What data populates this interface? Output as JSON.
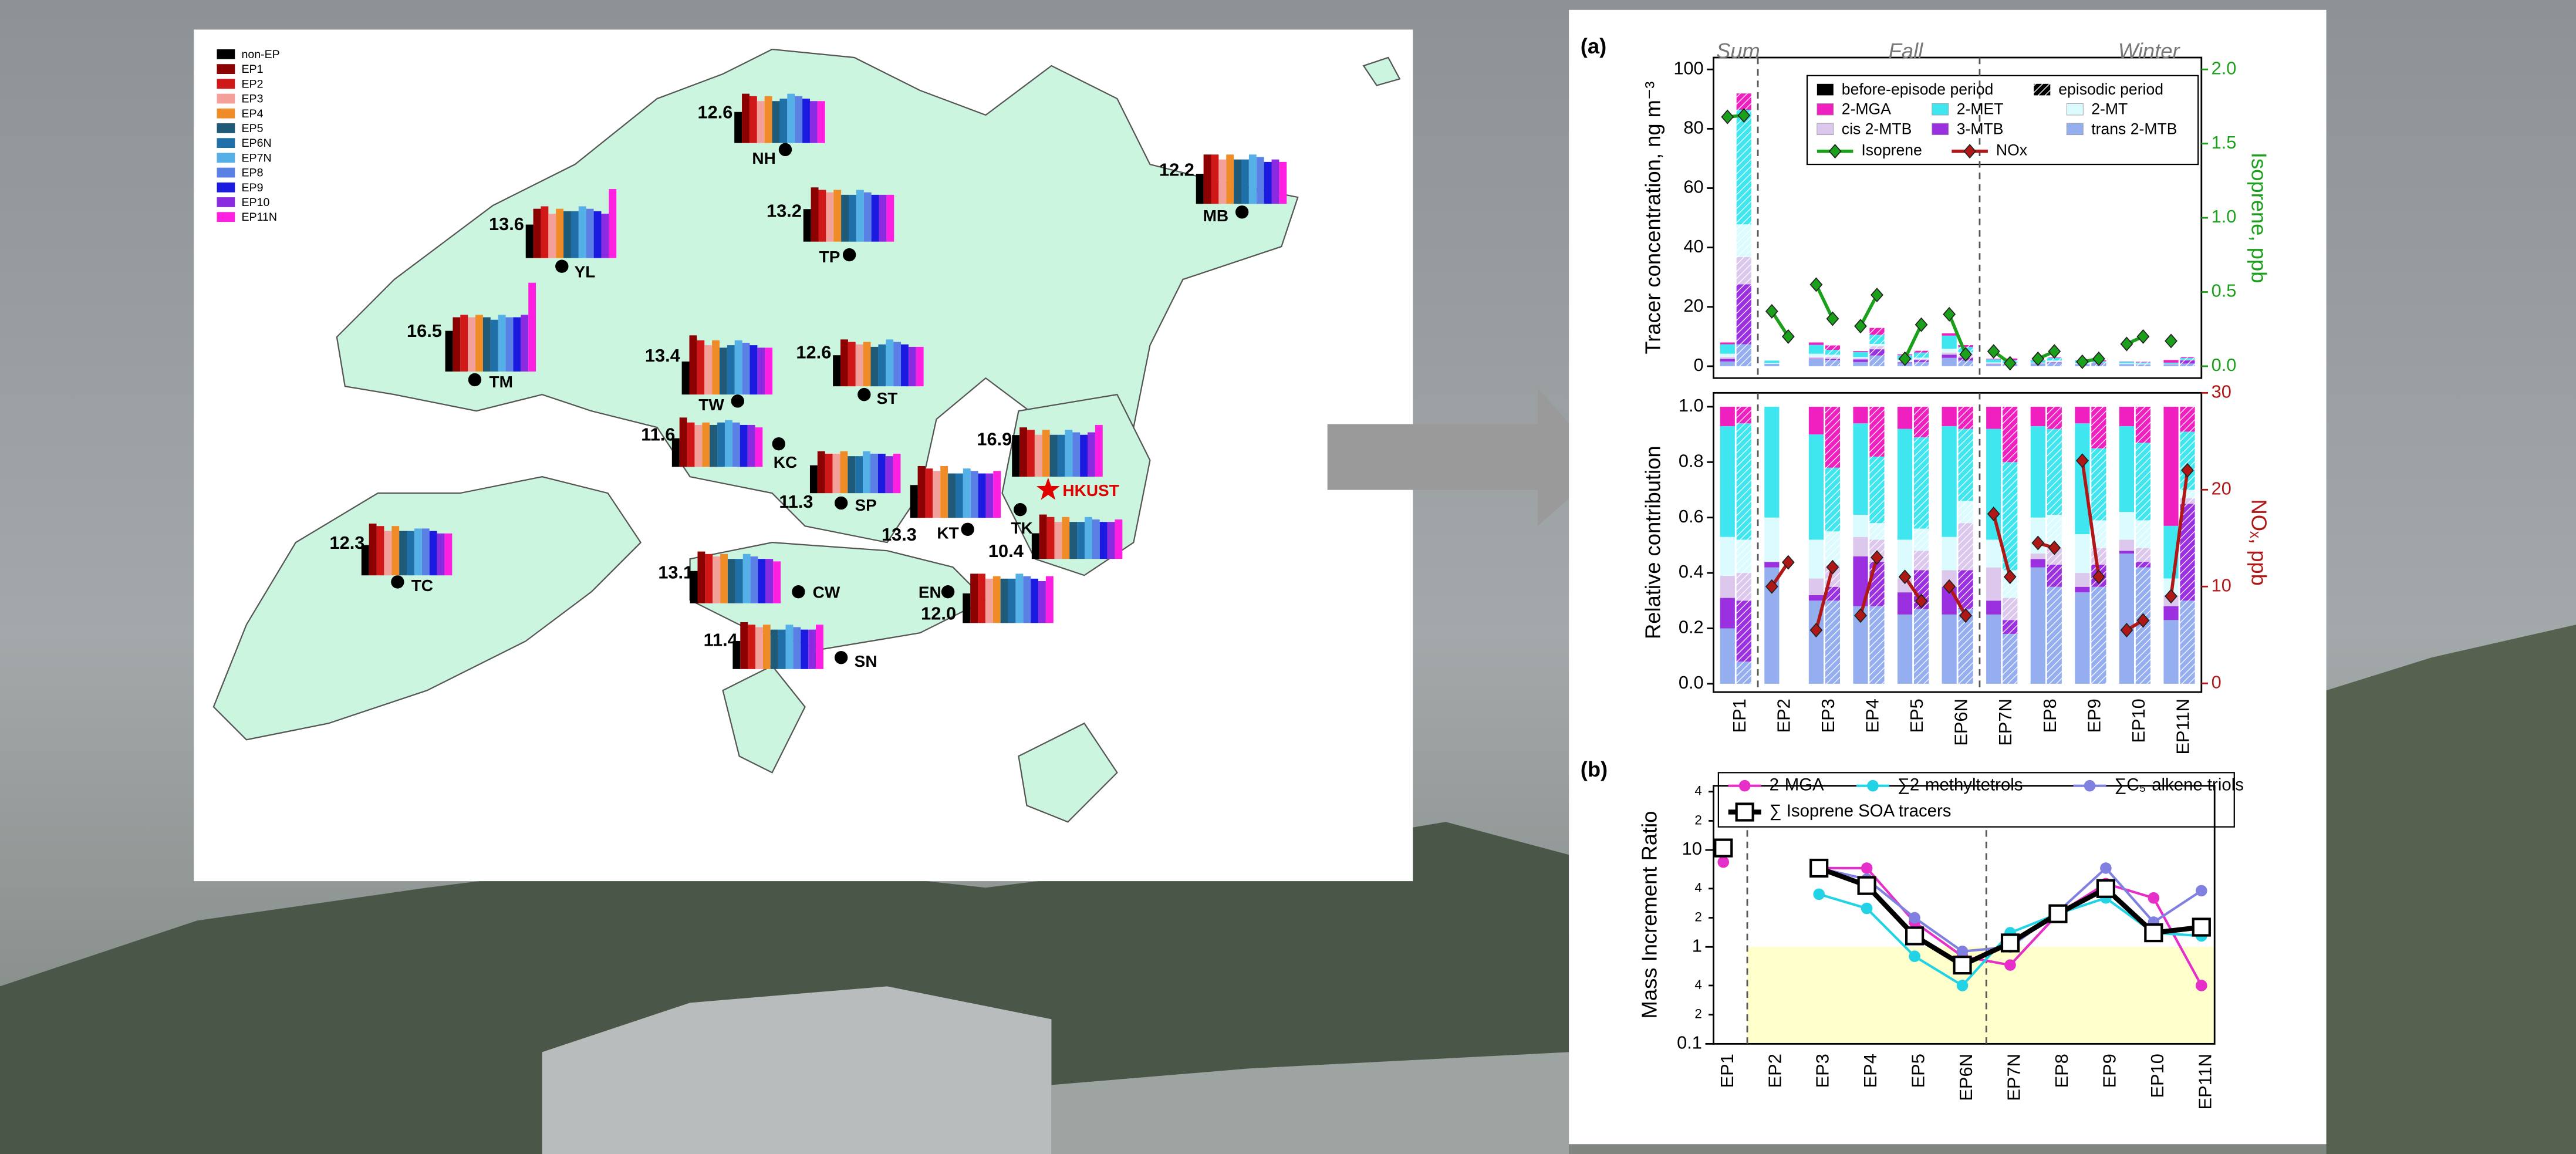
{
  "map": {
    "legend": [
      {
        "name": "non-EP",
        "color": "#000000"
      },
      {
        "name": "EP1",
        "color": "#8b0000"
      },
      {
        "name": "EP2",
        "color": "#d01818"
      },
      {
        "name": "EP3",
        "color": "#f4a09a"
      },
      {
        "name": "EP4",
        "color": "#f08c28"
      },
      {
        "name": "EP5",
        "color": "#1f5a78"
      },
      {
        "name": "EP6N",
        "color": "#1f6fa8"
      },
      {
        "name": "EP7N",
        "color": "#55b0e8"
      },
      {
        "name": "EP8",
        "color": "#5a80e6"
      },
      {
        "name": "EP9",
        "color": "#1a1ae0"
      },
      {
        "name": "EP10",
        "color": "#8a2be2"
      },
      {
        "name": "EP11N",
        "color": "#ff1fe0"
      }
    ],
    "stations": [
      {
        "name": "NH",
        "label": "12.6",
        "bars": [
          12.6,
          20,
          19,
          17,
          19,
          17,
          18,
          20,
          19,
          18,
          17,
          17
        ]
      },
      {
        "name": "YL",
        "label": "13.6",
        "bars": [
          13.6,
          20,
          21,
          18,
          20,
          19,
          19,
          21,
          20,
          19,
          18,
          28
        ]
      },
      {
        "name": "TM",
        "label": "16.5",
        "bars": [
          16.5,
          22,
          23,
          22,
          23,
          22,
          21,
          23,
          22,
          22,
          23,
          36
        ]
      },
      {
        "name": "TP",
        "label": "13.2",
        "bars": [
          13.2,
          22,
          21,
          20,
          21,
          19,
          19,
          21,
          20,
          19,
          19,
          19
        ]
      },
      {
        "name": "MB",
        "label": "12.2",
        "bars": [
          12.2,
          20,
          20,
          18,
          20,
          18,
          18,
          20,
          19,
          17,
          18,
          17
        ]
      },
      {
        "name": "TW",
        "label": "13.4",
        "bars": [
          13.4,
          24,
          22,
          20,
          22,
          19,
          20,
          22,
          21,
          20,
          19,
          19
        ]
      },
      {
        "name": "ST",
        "label": "12.6",
        "bars": [
          12.6,
          19,
          18,
          17,
          18,
          16,
          17,
          19,
          18,
          17,
          16,
          16
        ]
      },
      {
        "name": "KC",
        "label": "11.6",
        "bars": [
          11.6,
          20,
          18,
          17,
          18,
          17,
          18,
          19,
          18,
          17,
          17,
          16
        ]
      },
      {
        "name": "SP",
        "label": "11.3",
        "bars": [
          11.3,
          17,
          16,
          16,
          17,
          15,
          15,
          17,
          16,
          16,
          15,
          16
        ]
      },
      {
        "name": "KT",
        "label": "13.3",
        "bars": [
          13.3,
          21,
          20,
          19,
          21,
          18,
          18,
          20,
          19,
          18,
          18,
          19
        ]
      },
      {
        "name": "HKUST",
        "label": "16.9",
        "color": "#e00000",
        "marker": "star",
        "bars": [
          16.9,
          20,
          19,
          17,
          19,
          17,
          17,
          19,
          18,
          17,
          18,
          21
        ]
      },
      {
        "name": "TK",
        "label": "10.4",
        "bars": [
          10.4,
          18,
          17,
          15,
          17,
          15,
          15,
          17,
          16,
          15,
          15,
          16
        ]
      },
      {
        "name": "TC",
        "label": "12.3",
        "bars": [
          12.3,
          21,
          20,
          18,
          20,
          18,
          18,
          19,
          19,
          18,
          17,
          17
        ]
      },
      {
        "name": "CW",
        "label": "13.1",
        "bars": [
          13.1,
          21,
          20,
          19,
          20,
          18,
          18,
          20,
          19,
          18,
          18,
          17
        ]
      },
      {
        "name": "EN",
        "label": "12.0",
        "bars": [
          12.0,
          20,
          20,
          18,
          19,
          18,
          18,
          20,
          19,
          18,
          17,
          19
        ]
      },
      {
        "name": "SN",
        "label": "11.4",
        "bars": [
          11.4,
          19,
          18,
          17,
          18,
          16,
          16,
          18,
          17,
          16,
          16,
          18
        ]
      }
    ]
  },
  "chart_data": [
    {
      "type": "paired_stacked_bar",
      "panel_label": "(a)",
      "season_labels": [
        "Sum",
        "Fall",
        "Winter"
      ],
      "ylabel": "Tracer concentration, ng m⁻³",
      "y2label": "Isoprene, ppb",
      "ylim": [
        -4,
        104
      ],
      "yticks": [
        0,
        20,
        40,
        60,
        80,
        100
      ],
      "y2lim": [
        -0.08,
        2.08
      ],
      "y2ticks": [
        {
          "value": 0,
          "label": "0.0"
        },
        0.5,
        {
          "value": 1,
          "label": "1.0"
        },
        1.5,
        {
          "value": 2,
          "label": "2.0"
        }
      ],
      "period_labels": [
        "before-episode period",
        "episodic period"
      ],
      "series": [
        {
          "name": "trans 2-MTB",
          "color": "#94aef0",
          "before": [
            1.6,
            0.8,
            2.4,
            1.4,
            1,
            2.8,
            0.6,
            0.8,
            0.7,
            0.7,
            0.5
          ],
          "episodic": [
            7.4,
            null,
            2.1,
            3.6,
            1.4,
            1.9,
            0.5,
            1.1,
            0.7,
            0.6,
            0.9
          ]
        },
        {
          "name": "3-MTB",
          "color": "#9b30e0",
          "before": [
            0.9,
            0,
            0.2,
            0.9,
            0.3,
            1.1,
            0.1,
            0.1,
            0,
            0,
            0.1
          ],
          "episodic": [
            20.2,
            null,
            0.4,
            2.1,
            0.7,
            1,
            0.1,
            0.2,
            0.2,
            0,
            1.1
          ]
        },
        {
          "name": "cis 2-MTB",
          "color": "#dcc8ec",
          "before": [
            0.6,
            0,
            0.5,
            0.4,
            0.2,
            0.7,
            0.3,
            0,
            0.1,
            0.1,
            0.1
          ],
          "episodic": [
            9.2,
            null,
            0.6,
            1,
            0.4,
            1.2,
            0.2,
            0.2,
            0.1,
            0.1,
            0.1
          ]
        },
        {
          "name": "2-MT",
          "color": "#dcfbff",
          "before": [
            1.1,
            0.3,
            1.1,
            0.4,
            0.6,
            1.3,
            0.3,
            0.3,
            0.3,
            0.2,
            0.1
          ],
          "episodic": [
            11,
            null,
            0.8,
            0.8,
            0.4,
            0.6,
            0.3,
            0.4,
            0.2,
            0.2,
            0.1
          ]
        },
        {
          "name": "2-MET",
          "color": "#3fe6f0",
          "before": [
            3.2,
            0.8,
            3,
            1.7,
            1.6,
            4.4,
            1,
            0.7,
            0.8,
            0.5,
            0.4
          ],
          "episodic": [
            38.6,
            null,
            1.6,
            3.1,
            1.7,
            1.8,
            1,
            0.9,
            0.5,
            0.4,
            0.6
          ]
        },
        {
          "name": "2-MGA",
          "color": "#f020c0",
          "before": [
            0.6,
            0,
            0.8,
            0.3,
            0.3,
            0.8,
            0.2,
            0.1,
            0.1,
            0.1,
            0.9
          ],
          "episodic": [
            5.5,
            null,
            1.5,
            2.3,
            0.6,
            0.6,
            0.5,
            0.2,
            0.3,
            0.2,
            0.3
          ]
        }
      ],
      "lines": [
        {
          "name": "Isoprene",
          "color": "#1aa01a",
          "axis": "y2",
          "before": [
            1.68,
            0.37,
            0.55,
            0.27,
            0.05,
            0.35,
            0.1,
            0.05,
            0.03,
            0.15,
            0.17
          ],
          "episodic": [
            1.69,
            0.2,
            0.32,
            0.48,
            0.28,
            0.08,
            0.02,
            0.1,
            0.05,
            0.2,
            null
          ]
        }
      ]
    },
    {
      "type": "paired_stacked_bar",
      "ylabel": "Relative contribution",
      "y2label": "NOₓ, ppb",
      "categories": [
        "EP1",
        "EP2",
        "EP3",
        "EP4",
        "EP5",
        "EP6N",
        "EP7N",
        "EP8",
        "EP9",
        "EP10",
        "EP11N"
      ],
      "ylim": [
        -0.03,
        1.05
      ],
      "yticks": [
        {
          "value": 0,
          "label": "0.0"
        },
        0.2,
        0.4,
        0.6,
        0.8,
        {
          "value": 1,
          "label": "1.0"
        }
      ],
      "y2lim": [
        -0.9,
        30
      ],
      "y2ticks": [
        0,
        10,
        20,
        30
      ],
      "series": [
        {
          "color": "#94aef0",
          "before": [
            0.2,
            0.42,
            0.3,
            0.28,
            0.25,
            0.25,
            0.25,
            0.42,
            0.33,
            0.47,
            0.23
          ],
          "episodic": [
            0.08,
            null,
            0.3,
            0.28,
            0.27,
            0.27,
            0.18,
            0.35,
            0.35,
            0.42,
            0.3
          ]
        },
        {
          "color": "#9b30e0",
          "before": [
            0.11,
            0.02,
            0.02,
            0.18,
            0.08,
            0.1,
            0.05,
            0.03,
            0.02,
            0.01,
            0.05
          ],
          "episodic": [
            0.22,
            null,
            0.05,
            0.16,
            0.14,
            0.14,
            0.05,
            0.08,
            0.08,
            0.02,
            0.35
          ]
        },
        {
          "color": "#dcc8ec",
          "before": [
            0.08,
            0,
            0.06,
            0.07,
            0.05,
            0.06,
            0.12,
            0.02,
            0.05,
            0.04,
            0.04
          ],
          "episodic": [
            0.1,
            null,
            0.08,
            0.08,
            0.07,
            0.17,
            0.08,
            0.06,
            0.06,
            0.05,
            0.02
          ]
        },
        {
          "color": "#dcfbff",
          "before": [
            0.14,
            0.16,
            0.14,
            0.08,
            0.14,
            0.12,
            0.1,
            0.13,
            0.14,
            0.1,
            0.06
          ],
          "episodic": [
            0.12,
            null,
            0.12,
            0.06,
            0.08,
            0.08,
            0.1,
            0.12,
            0.1,
            0.1,
            0.03
          ]
        },
        {
          "color": "#3fe6f0",
          "before": [
            0.4,
            0.4,
            0.38,
            0.33,
            0.4,
            0.4,
            0.4,
            0.33,
            0.4,
            0.31,
            0.19
          ],
          "episodic": [
            0.42,
            null,
            0.23,
            0.24,
            0.33,
            0.26,
            0.39,
            0.31,
            0.26,
            0.28,
            0.21
          ]
        },
        {
          "color": "#f020c0",
          "before": [
            0.07,
            0,
            0.1,
            0.06,
            0.08,
            0.07,
            0.08,
            0.07,
            0.06,
            0.07,
            0.43
          ],
          "episodic": [
            0.06,
            null,
            0.22,
            0.18,
            0.11,
            0.08,
            0.2,
            0.08,
            0.15,
            0.13,
            0.09
          ]
        }
      ],
      "lines": [
        {
          "name": "NOx",
          "color": "#b01818",
          "axis": "y2",
          "before": [
            null,
            10,
            5.5,
            7,
            11,
            10,
            17.5,
            14.5,
            23,
            5.5,
            9
          ],
          "episodic": [
            null,
            12.5,
            12,
            13,
            8.5,
            7,
            11,
            14,
            11,
            6.5,
            22
          ]
        }
      ]
    },
    {
      "type": "line",
      "panel_label": "(b)",
      "ylabel": "Mass Increment Ratio",
      "log_y": true,
      "categories": [
        "EP1",
        "EP2",
        "EP3",
        "EP4",
        "EP5",
        "EP6N",
        "EP7N",
        "EP8",
        "EP9",
        "EP10",
        "EP11N"
      ],
      "ylim": [
        0.1,
        46
      ],
      "yticks": [
        0.1,
        {
          "value": 0.2,
          "label": "2"
        },
        {
          "value": 0.4,
          "label": "4"
        },
        1,
        2,
        4,
        10,
        {
          "value": 20,
          "label": "2"
        },
        {
          "value": 40,
          "label": "4"
        }
      ],
      "shaded_band": {
        "range": [
          0.1,
          1
        ],
        "color": "#ffffcc"
      },
      "series": [
        {
          "name": "2-MGA",
          "color": "#e62ec8",
          "marker": "circle",
          "values": [
            7.5,
            null,
            6.5,
            6.5,
            1.8,
            0.8,
            0.65,
            2.2,
            4.5,
            3.2,
            0.4
          ]
        },
        {
          "name": "∑2-methyltetrols",
          "color": "#22d3e6",
          "marker": "circle",
          "values": [
            null,
            null,
            3.5,
            2.5,
            0.8,
            0.4,
            1.4,
            2.2,
            3.2,
            1.4,
            1.3
          ]
        },
        {
          "name": "∑C₅-alkene triols",
          "color": "#8080e0",
          "marker": "circle",
          "values": [
            null,
            null,
            6.5,
            5,
            2,
            0.9,
            1,
            2.3,
            6.5,
            1.8,
            3.8
          ]
        },
        {
          "name": "∑ Isoprene SOA tracers",
          "color": "#000000",
          "marker": "square",
          "values": [
            10.5,
            null,
            6.5,
            4.3,
            1.3,
            0.65,
            1.1,
            2.2,
            4,
            1.4,
            1.6
          ]
        }
      ]
    }
  ]
}
